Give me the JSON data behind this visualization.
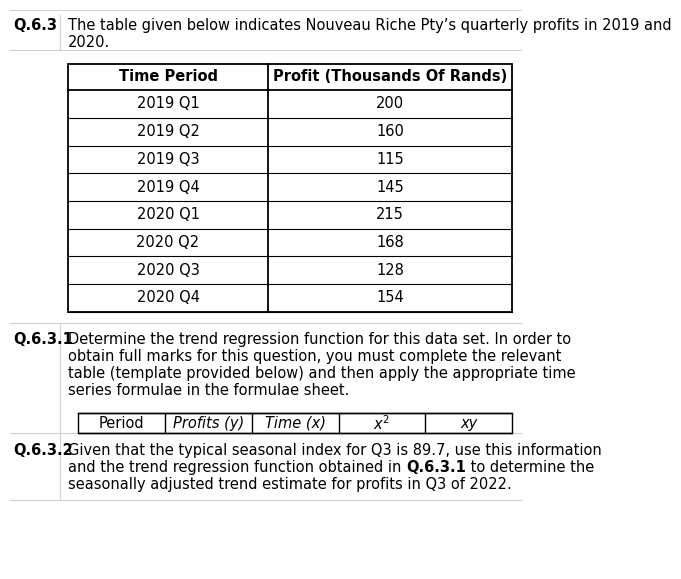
{
  "title_label": "Q.6.3",
  "title_line1": "The table given below indicates Nouveau Riche Pty’s quarterly profits in 2019 and",
  "title_line2": "2020.",
  "table_headers": [
    "Time Period",
    "Profit (Thousands Of Rands)"
  ],
  "table_rows": [
    [
      "2019 Q1",
      "200"
    ],
    [
      "2019 Q2",
      "160"
    ],
    [
      "2019 Q3",
      "115"
    ],
    [
      "2019 Q4",
      "145"
    ],
    [
      "2020 Q1",
      "215"
    ],
    [
      "2020 Q2",
      "168"
    ],
    [
      "2020 Q3",
      "128"
    ],
    [
      "2020 Q4",
      "154"
    ]
  ],
  "sub_label_1": "Q.6.3.1",
  "sub_text_1_lines": [
    "Determine the trend regression function for this data set. In order to",
    "obtain full marks for this question, you must complete the relevant",
    "table (template provided below) and then apply the appropriate time",
    "series formulae in the formulae sheet."
  ],
  "sub_table_headers": [
    "Period",
    "Profits (y)",
    "Time (x)",
    "x²",
    "xy"
  ],
  "sub_label_2": "Q.6.3.2",
  "sub_text_2_lines": [
    [
      "Given that the typical seasonal index for Q3 is 89.7, use this information",
      false
    ],
    [
      "and the trend regression function obtained in ",
      false,
      "Q.6.3.1",
      true,
      " to determine the",
      false
    ],
    [
      "seasonally adjusted trend estimate for profits in Q3 of 2022.",
      false
    ]
  ],
  "bg_color": "#ffffff",
  "text_color": "#000000",
  "border_color": "#000000",
  "sep_color": "#d0d0d0",
  "accent_color": "#1a5276"
}
